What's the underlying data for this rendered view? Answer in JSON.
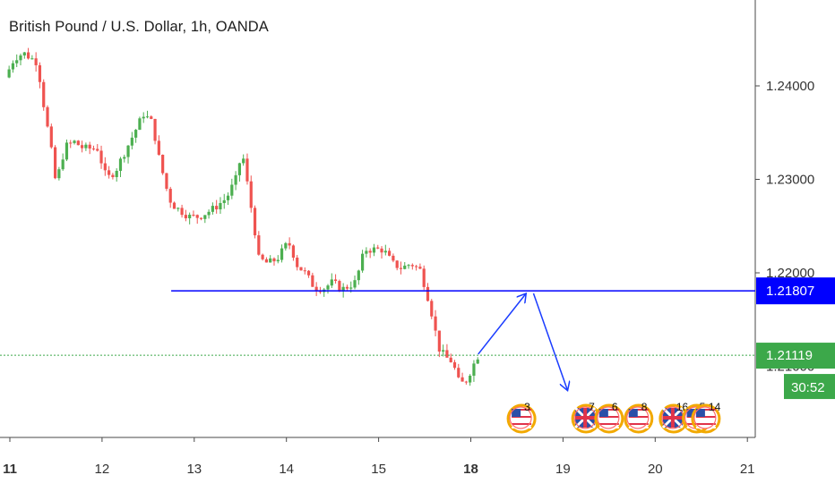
{
  "chart_data": {
    "type": "candlestick",
    "title": "British Pound / U.S. Dollar, 1h, OANDA",
    "y_ticks": [
      "1.24000",
      "1.23000",
      "1.22000"
    ],
    "y_partial_tick": "1.21000",
    "x_ticks": [
      {
        "label": "11",
        "day": 11,
        "bold": true
      },
      {
        "label": "12",
        "day": 12,
        "bold": false
      },
      {
        "label": "13",
        "day": 13,
        "bold": false
      },
      {
        "label": "14",
        "day": 14,
        "bold": false
      },
      {
        "label": "15",
        "day": 15,
        "bold": false
      },
      {
        "label": "18",
        "day": 16,
        "bold": true
      },
      {
        "label": "19",
        "day": 17,
        "bold": false
      },
      {
        "label": "20",
        "day": 18,
        "bold": false
      },
      {
        "label": "21",
        "day": 19,
        "bold": false
      }
    ],
    "ylim": [
      1.2055,
      1.2455
    ],
    "xlim": [
      10.95,
      19.1
    ],
    "price_path": [
      [
        10.95,
        1.2409
      ],
      [
        11.05,
        1.243
      ],
      [
        11.15,
        1.2435
      ],
      [
        11.3,
        1.2425
      ],
      [
        11.35,
        1.239
      ],
      [
        11.4,
        1.236
      ],
      [
        11.45,
        1.233
      ],
      [
        11.5,
        1.2295
      ],
      [
        11.6,
        1.2335
      ],
      [
        11.7,
        1.234
      ],
      [
        11.8,
        1.2333
      ],
      [
        11.95,
        1.2333
      ],
      [
        12.05,
        1.23
      ],
      [
        12.15,
        1.231
      ],
      [
        12.3,
        1.234
      ],
      [
        12.45,
        1.237
      ],
      [
        12.55,
        1.236
      ],
      [
        12.6,
        1.233
      ],
      [
        12.7,
        1.229
      ],
      [
        12.75,
        1.2275
      ],
      [
        12.8,
        1.227
      ],
      [
        12.95,
        1.226
      ],
      [
        13.05,
        1.226
      ],
      [
        13.2,
        1.2268
      ],
      [
        13.35,
        1.228
      ],
      [
        13.45,
        1.23
      ],
      [
        13.52,
        1.233
      ],
      [
        13.6,
        1.228
      ],
      [
        13.65,
        1.225
      ],
      [
        13.7,
        1.2215
      ],
      [
        13.8,
        1.221
      ],
      [
        13.9,
        1.2215
      ],
      [
        14.0,
        1.223
      ],
      [
        14.05,
        1.223
      ],
      [
        14.1,
        1.221
      ],
      [
        14.2,
        1.22
      ],
      [
        14.3,
        1.2185
      ],
      [
        14.4,
        1.2183
      ],
      [
        14.5,
        1.219
      ],
      [
        14.6,
        1.2182
      ],
      [
        14.75,
        1.219
      ],
      [
        14.85,
        1.2225
      ],
      [
        14.95,
        1.2225
      ],
      [
        15.05,
        1.2225
      ],
      [
        15.15,
        1.221
      ],
      [
        15.25,
        1.2205
      ],
      [
        15.35,
        1.221
      ],
      [
        15.45,
        1.2203
      ],
      [
        15.52,
        1.218
      ],
      [
        15.58,
        1.2155
      ],
      [
        15.65,
        1.212
      ],
      [
        15.72,
        1.211
      ],
      [
        15.8,
        1.2105
      ],
      [
        15.88,
        1.208
      ],
      [
        15.95,
        1.2085
      ],
      [
        16.02,
        1.21
      ],
      [
        16.08,
        1.2112
      ]
    ],
    "support_line": {
      "value": 1.21807,
      "label": "1.21807",
      "x_start": 12.75,
      "color": "#0000ff"
    },
    "current_price": {
      "value": 1.21119,
      "label": "1.21119",
      "countdown": "30:52",
      "color": "#3ca84a"
    },
    "projection_arrows": [
      {
        "from": [
          16.08,
          1.2113
        ],
        "to": [
          16.6,
          1.2178
        ]
      },
      {
        "from": [
          16.68,
          1.2178
        ],
        "to": [
          17.05,
          1.2074
        ]
      }
    ],
    "events": [
      {
        "flag": "us-flag-icon",
        "day": 16.55,
        "count": "3"
      },
      {
        "flag": "uk-flag-icon",
        "day": 17.25,
        "count": "7"
      },
      {
        "flag": "us-flag-icon",
        "day": 17.5,
        "count": "6"
      },
      {
        "flag": "us-flag-icon",
        "day": 17.82,
        "count": "8"
      },
      {
        "flag": "uk-flag-icon",
        "day": 18.2,
        "count": "16"
      },
      {
        "flag": "us-flag-icon",
        "day": 18.45,
        "count": "5"
      },
      {
        "flag": "us-flag-icon",
        "day": 18.55,
        "count": "14"
      }
    ],
    "colors": {
      "up": "#4caf50",
      "down": "#ef5350",
      "axis": "#4a4a4a",
      "grid": "none"
    }
  }
}
